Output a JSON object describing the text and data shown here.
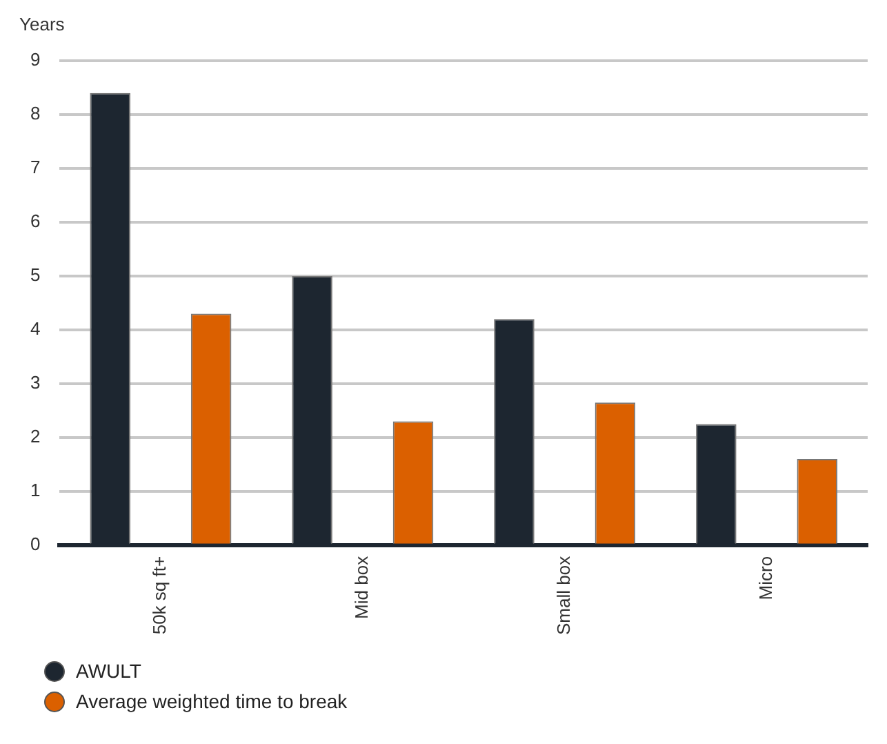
{
  "chart_data": {
    "type": "bar",
    "ylabel": "Years",
    "categories": [
      "50k sq ft+",
      "Mid box",
      "Small box",
      "Micro"
    ],
    "series": [
      {
        "name": "AWULT",
        "color": "#1d2630",
        "values": [
          8.4,
          5.0,
          4.2,
          2.25
        ]
      },
      {
        "name": "Average weighted time to break",
        "color": "#db6000",
        "values": [
          4.3,
          2.3,
          2.65,
          1.6
        ]
      }
    ],
    "ylim": [
      0,
      9
    ],
    "yticks": [
      0,
      1,
      2,
      3,
      4,
      5,
      6,
      7,
      8,
      9
    ],
    "grid": "y",
    "legend": "bottom left"
  }
}
